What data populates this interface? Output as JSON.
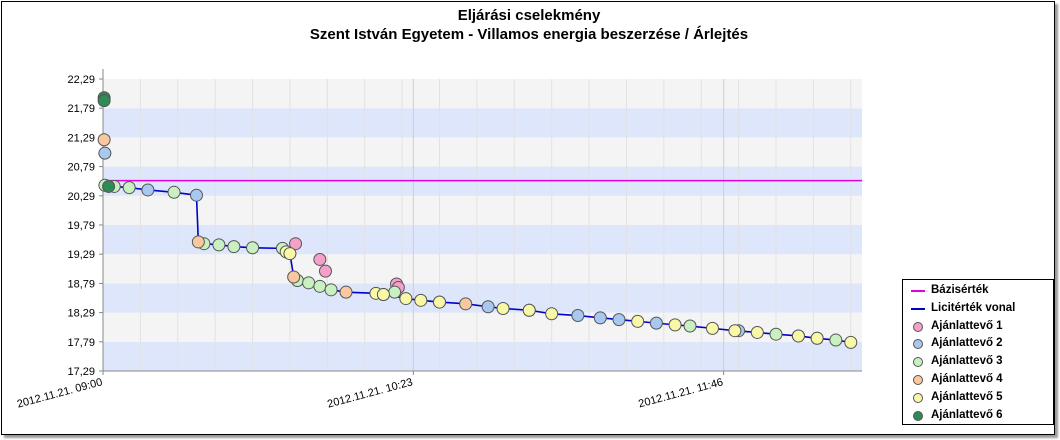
{
  "chart_data": {
    "type": "line",
    "title": "Eljárási cselekmény",
    "subtitle": "Szent István Egyetem - Villamos energia beszerzése / Árlejtés",
    "xlabel": "",
    "ylabel": "",
    "y_ticks": [
      "17,29",
      "17,79",
      "18,29",
      "18,79",
      "19,29",
      "19,79",
      "20,29",
      "20,79",
      "21,29",
      "21,79",
      "22,29"
    ],
    "ylim": [
      17.29,
      22.29
    ],
    "x_ticks": [
      "2012.11.21. 09:00",
      "2012.11.21. 10:23",
      "2012.11.21. 11:46"
    ],
    "x_range_minutes": [
      0,
      203
    ],
    "grid": true,
    "legend_position": "bottom-right",
    "series": [
      {
        "name": "Bázisérték",
        "kind": "line",
        "color": "#e000e0",
        "x": [
          0,
          203
        ],
        "y": [
          20.55,
          20.55
        ]
      },
      {
        "name": "Licitérték vonal",
        "kind": "line",
        "color": "#0000cc",
        "x": [
          0,
          3,
          5,
          7,
          12,
          19,
          25,
          25.5,
          27,
          31,
          35,
          40,
          48,
          50,
          51,
          52,
          55,
          58,
          61,
          65,
          73,
          75,
          78,
          81,
          85,
          90,
          97,
          103,
          107,
          114,
          120,
          127,
          133,
          138,
          143,
          148,
          153,
          157,
          163,
          169,
          175,
          180,
          186,
          191,
          196,
          200
        ],
        "y": [
          20.45,
          20.45,
          20.44,
          20.43,
          20.39,
          20.35,
          20.3,
          19.5,
          19.47,
          19.45,
          19.42,
          19.4,
          19.39,
          19.3,
          18.9,
          18.84,
          18.8,
          18.74,
          18.68,
          18.64,
          18.62,
          18.6,
          18.57,
          18.53,
          18.5,
          18.47,
          18.44,
          18.39,
          18.36,
          18.33,
          18.27,
          18.24,
          18.2,
          18.17,
          18.14,
          18.11,
          18.08,
          18.06,
          18.02,
          17.98,
          17.95,
          17.92,
          17.89,
          17.85,
          17.82,
          17.78
        ]
      },
      {
        "name": "Ajánlattevő 1",
        "kind": "marker",
        "color": "#f4a0c8",
        "x": [
          51.5,
          58,
          59.5,
          78.5,
          79
        ],
        "y": [
          19.47,
          19.2,
          19.0,
          18.78,
          18.72
        ]
      },
      {
        "name": "Ajánlattevő 2",
        "kind": "marker",
        "color": "#a8c8f0",
        "x": [
          0.5,
          12,
          25,
          75,
          103,
          127,
          133,
          138,
          148,
          170,
          186,
          191
        ],
        "y": [
          21.02,
          20.39,
          20.3,
          18.6,
          18.39,
          18.24,
          18.2,
          18.17,
          18.11,
          17.98,
          17.89,
          17.85
        ]
      },
      {
        "name": "Ajánlattevő 3",
        "kind": "marker",
        "color": "#c8f0c0",
        "x": [
          0.5,
          3,
          7,
          19,
          27,
          31,
          35,
          40,
          48,
          52,
          55,
          58,
          61,
          78,
          90,
          114,
          157,
          180,
          196
        ],
        "y": [
          20.47,
          20.45,
          20.43,
          20.35,
          19.47,
          19.45,
          19.42,
          19.4,
          19.39,
          18.84,
          18.8,
          18.74,
          18.68,
          18.64,
          18.47,
          18.33,
          18.06,
          17.92,
          17.82
        ]
      },
      {
        "name": "Ajánlattevő 4",
        "kind": "marker",
        "color": "#f8c8a0",
        "x": [
          0.3,
          25.5,
          51,
          65,
          97
        ],
        "y": [
          21.25,
          19.5,
          18.9,
          18.64,
          18.44
        ]
      },
      {
        "name": "Ajánlattevő 5",
        "kind": "marker",
        "color": "#f8f8a8",
        "x": [
          49,
          50,
          73,
          75,
          81,
          85,
          90,
          107,
          114,
          120,
          143,
          153,
          163,
          169,
          175,
          186,
          191,
          200
        ],
        "y": [
          19.33,
          19.3,
          18.62,
          18.6,
          18.53,
          18.5,
          18.47,
          18.36,
          18.33,
          18.27,
          18.14,
          18.08,
          18.02,
          17.98,
          17.95,
          17.89,
          17.85,
          17.78
        ]
      },
      {
        "name": "Ajánlattevő 6",
        "kind": "marker",
        "color": "#2e8b57",
        "x": [
          0.3,
          0.3,
          1.5
        ],
        "y": [
          21.97,
          21.92,
          20.45
        ]
      }
    ]
  }
}
